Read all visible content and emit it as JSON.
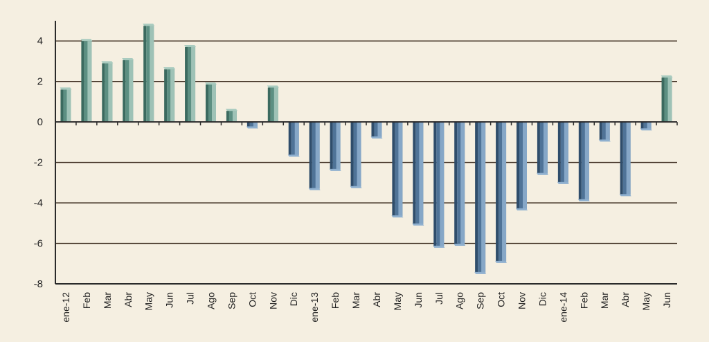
{
  "colors": {
    "background": "#f5efe1",
    "positive_front": "#5c8f82",
    "positive_light": "#a9cbbf",
    "positive_dark": "#3b6a5f",
    "negative_front": "#4f7397",
    "negative_light": "#8fb0cf",
    "negative_dark": "#2f4d6b",
    "gridline": "#3a2a1c",
    "axis": "#2a2a2a"
  },
  "chart_data": {
    "type": "bar",
    "title": "",
    "xlabel": "",
    "ylabel": "",
    "ylim": [
      -8,
      5
    ],
    "yticks": [
      -8,
      -6,
      -4,
      -2,
      0,
      2,
      4
    ],
    "grid": true,
    "categories": [
      "ene-12",
      "Feb",
      "Mar",
      "Abr",
      "May",
      "Jun",
      "Jul",
      "Ago",
      "Sep",
      "Oct",
      "Nov",
      "Dic",
      "ene-13",
      "Feb",
      "Mar",
      "Abr",
      "May",
      "Jun",
      "Jul",
      "Ago",
      "Sep",
      "Oct",
      "Nov",
      "Dic",
      "ene-14",
      "Feb",
      "Mar",
      "Abr",
      "May",
      "Jun"
    ],
    "values": [
      1.6,
      4.0,
      2.9,
      3.05,
      4.75,
      2.6,
      3.7,
      1.85,
      0.55,
      -0.25,
      1.7,
      -1.65,
      -3.3,
      -2.35,
      -3.2,
      -0.75,
      -4.65,
      -5.05,
      -6.15,
      -6.05,
      -7.45,
      -6.9,
      -4.3,
      -2.55,
      -3.0,
      -3.85,
      -0.9,
      -3.6,
      -0.35,
      2.2
    ]
  }
}
